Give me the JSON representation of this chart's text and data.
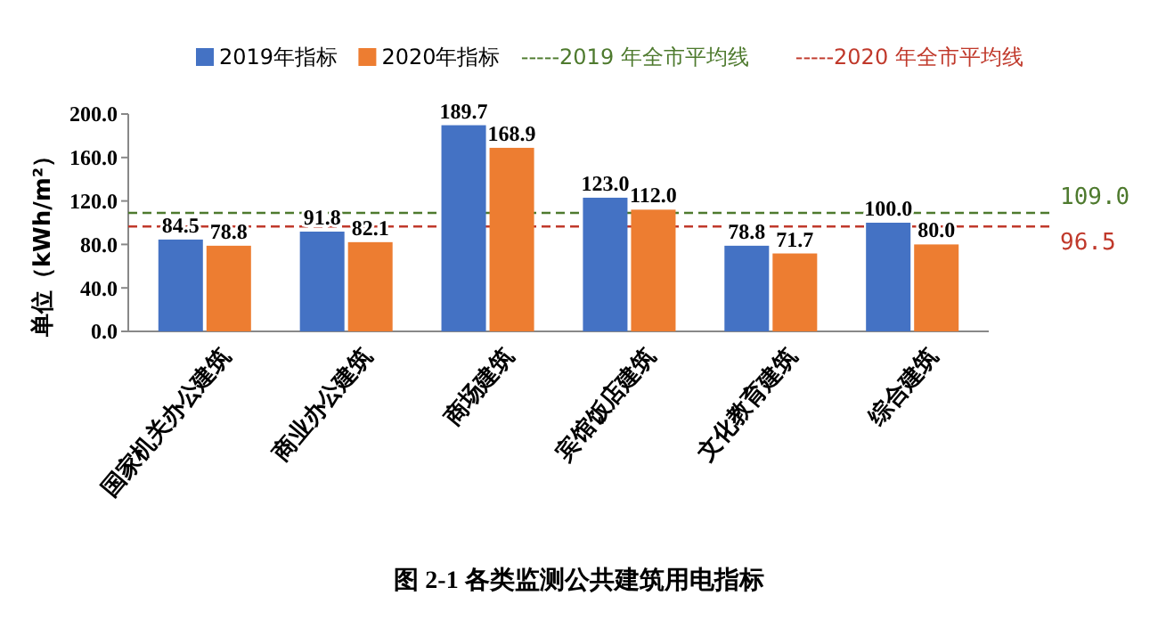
{
  "chart_data": {
    "type": "bar",
    "title": "图 2-1  各类监测公共建筑用电指标",
    "ylabel": "单位（kWh/m²）",
    "categories": [
      "国家机关办公建筑",
      "商业办公建筑",
      "商场建筑",
      "宾馆饭店建筑",
      "文化教育建筑",
      "综合建筑"
    ],
    "series": [
      {
        "name": "2019年指标",
        "color": "#4472c4",
        "values": [
          84.5,
          91.8,
          189.7,
          123.0,
          78.8,
          100.0
        ],
        "value_labels": [
          "84.5",
          "91.8",
          "189.7",
          "123.0",
          "78.8",
          "100.0"
        ]
      },
      {
        "name": "2020年指标",
        "color": "#ed7d31",
        "values": [
          78.8,
          82.1,
          168.9,
          112.0,
          71.7,
          80.0
        ],
        "value_labels": [
          "78.8",
          "82.1",
          "168.9",
          "112.0",
          "71.7",
          "80.0"
        ]
      }
    ],
    "ylim": [
      0,
      200
    ],
    "yticks": [
      {
        "value": 0,
        "label": "0.0"
      },
      {
        "value": 40,
        "label": "40.0"
      },
      {
        "value": 80,
        "label": "80.0"
      },
      {
        "value": 120,
        "label": "120.0"
      },
      {
        "value": 160,
        "label": "160.0"
      },
      {
        "value": 200,
        "label": "200.0"
      }
    ],
    "ref_lines": [
      {
        "axis": "y",
        "value": 109.0,
        "label": "-----2019 年全市平均线",
        "color": "#4e7a2e",
        "line_style": "dashed"
      },
      {
        "axis": "y",
        "value": 96.5,
        "label": "-----2020 年全市平均线",
        "color": "#c0392b",
        "line_style": "dashed"
      }
    ],
    "annotations": [
      "109.0",
      "96.5"
    ],
    "legend": "top",
    "grid": false
  }
}
